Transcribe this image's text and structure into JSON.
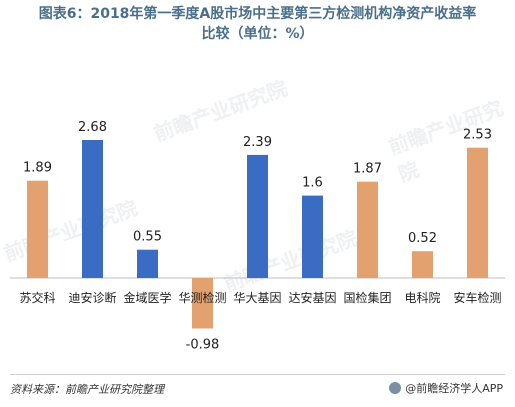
{
  "title_line1": "图表6：2018年第一季度A股市场中主要第三方检测机构净资产收益率",
  "title_line2": "比较（单位：%）",
  "source": "资料来源：前瞻产业研究院整理",
  "credit": "@前瞻经济学人APP",
  "watermark": "前瞻产业研究院",
  "colors": {
    "orange": "#e3a16f",
    "blue": "#3b6cc4"
  },
  "chart_data": {
    "type": "bar",
    "title": "图表6：2018年第一季度A股市场中主要第三方检测机构净资产收益率比较（单位：%）",
    "categories": [
      "苏交科",
      "迪安诊断",
      "金域医学",
      "华测检测",
      "华大基因",
      "达安基因",
      "国检集团",
      "电科院",
      "安车检测"
    ],
    "values": [
      1.89,
      2.68,
      0.55,
      -0.98,
      2.39,
      1.6,
      1.87,
      0.52,
      2.53
    ],
    "value_labels": [
      "1.89",
      "2.68",
      "0.55",
      "-0.98",
      "2.39",
      "1.6",
      "1.87",
      "0.52",
      "2.53"
    ],
    "bar_colors": [
      "#e3a16f",
      "#3b6cc4",
      "#3b6cc4",
      "#e3a16f",
      "#3b6cc4",
      "#3b6cc4",
      "#e3a16f",
      "#e3a16f",
      "#e3a16f"
    ],
    "ylim": [
      -1.2,
      3.0
    ],
    "grid": false,
    "legend": "none"
  }
}
